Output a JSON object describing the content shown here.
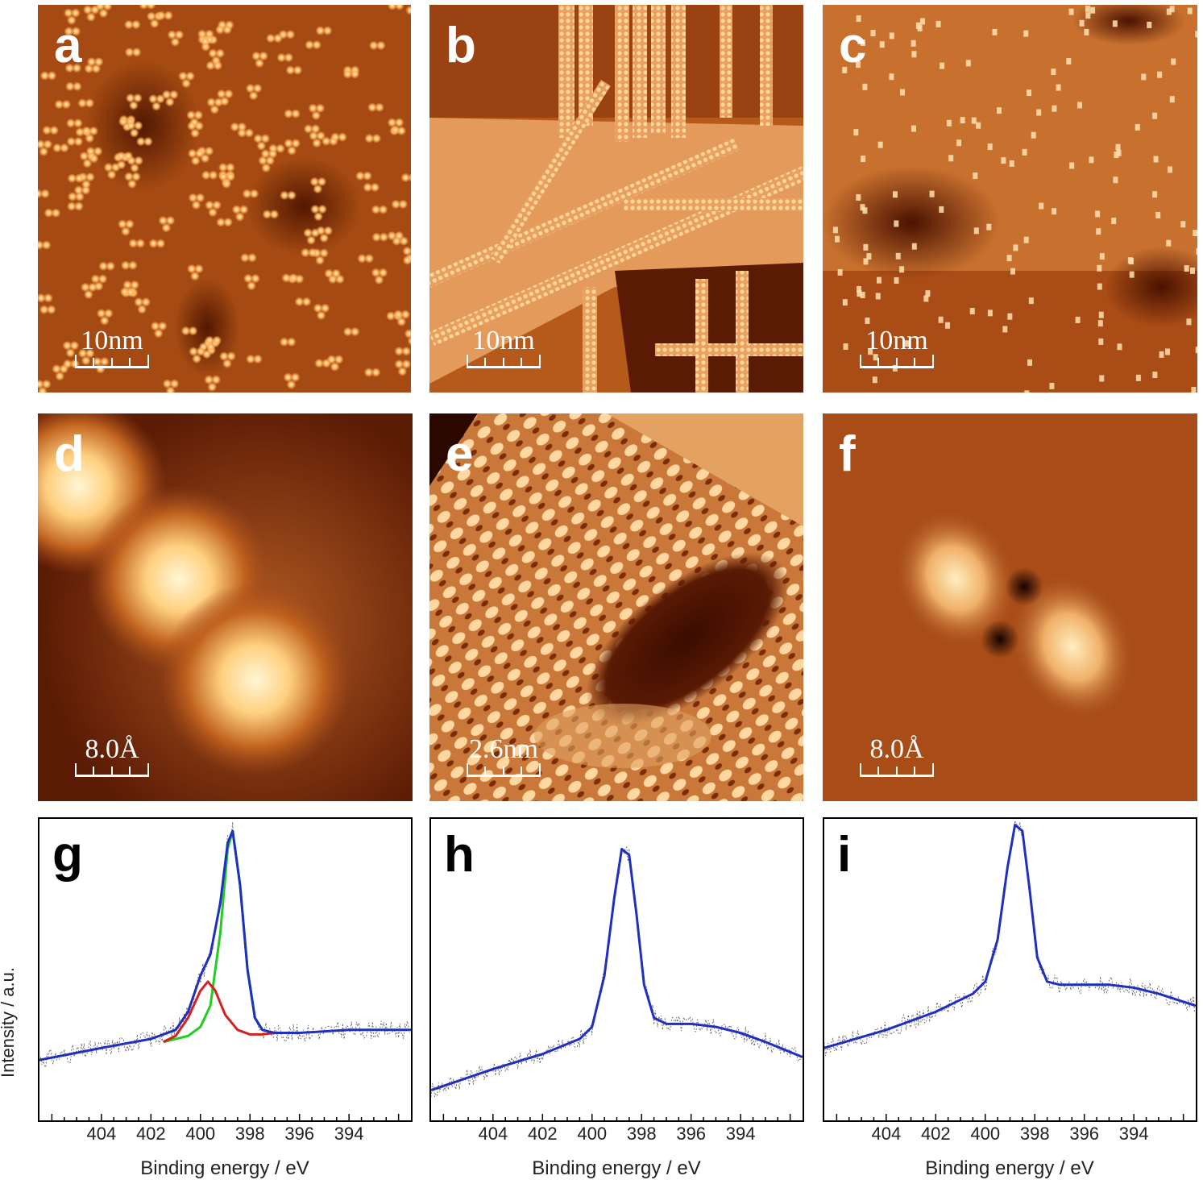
{
  "panels": {
    "a": {
      "label": "a",
      "scale": "10nm"
    },
    "b": {
      "label": "b",
      "scale": "10nm"
    },
    "c": {
      "label": "c",
      "scale": "10nm"
    },
    "d": {
      "label": "d",
      "scale": "8.0Å"
    },
    "e": {
      "label": "e",
      "scale": "2.6nm"
    },
    "f": {
      "label": "f",
      "scale": "8.0Å"
    },
    "g": {
      "label": "g"
    },
    "h": {
      "label": "h"
    },
    "i": {
      "label": "i"
    }
  },
  "colors": {
    "stm_dark": "#5a1a00",
    "stm_mid": "#b85a1e",
    "stm_bright": "#ffe4a8",
    "fit_envelope": "#1f2fbf",
    "component_1": "#d42020",
    "component_2": "#22cc22",
    "raw_data": "#555555"
  },
  "chart_data": [
    {
      "type": "line",
      "panel": "g",
      "xlabel": "Binding energy / eV",
      "ylabel": "Intensity / a.u.",
      "x_ticks": [
        "404",
        "402",
        "400",
        "398",
        "396",
        "394"
      ],
      "xlim": [
        406.5,
        391.5
      ],
      "x_reversed": true,
      "series": [
        {
          "color": "#1f2fbf",
          "x": [
            406.5,
            404,
            402,
            401,
            400.5,
            400,
            399.6,
            399.2,
            398.9,
            398.7,
            398.4,
            398.1,
            397.8,
            397.5,
            397,
            396,
            394,
            392,
            391.5
          ],
          "y": [
            0.2,
            0.24,
            0.27,
            0.3,
            0.36,
            0.48,
            0.55,
            0.72,
            0.92,
            0.96,
            0.78,
            0.5,
            0.34,
            0.3,
            0.29,
            0.29,
            0.3,
            0.3,
            0.3
          ]
        },
        {
          "color": "#d42020",
          "x": [
            401.5,
            401,
            400.5,
            400,
            399.7,
            399.4,
            399,
            398.5,
            398,
            397.5,
            397
          ],
          "y": [
            0.26,
            0.28,
            0.34,
            0.43,
            0.46,
            0.43,
            0.35,
            0.3,
            0.285,
            0.285,
            0.29
          ]
        },
        {
          "color": "#22cc22",
          "x": [
            401.5,
            401,
            400.5,
            400,
            399.6,
            399.2,
            398.9,
            398.7,
            398.4,
            398.1,
            397.8,
            397.5
          ],
          "y": [
            0.26,
            0.27,
            0.28,
            0.31,
            0.38,
            0.62,
            0.9,
            0.96,
            0.78,
            0.5,
            0.34,
            0.3
          ]
        }
      ]
    },
    {
      "type": "line",
      "panel": "h",
      "xlabel": "Binding energy / eV",
      "x_ticks": [
        "404",
        "402",
        "400",
        "398",
        "396",
        "394"
      ],
      "xlim": [
        406.5,
        391.5
      ],
      "x_reversed": true,
      "series": [
        {
          "color": "#1f2fbf",
          "x": [
            406.5,
            404,
            402,
            400.5,
            400,
            399.5,
            399.1,
            398.8,
            398.5,
            398.2,
            397.9,
            397.5,
            397,
            396,
            395,
            394,
            393,
            391.5
          ],
          "y": [
            0.1,
            0.17,
            0.22,
            0.27,
            0.31,
            0.48,
            0.74,
            0.9,
            0.88,
            0.68,
            0.45,
            0.34,
            0.32,
            0.32,
            0.31,
            0.29,
            0.26,
            0.21
          ]
        }
      ]
    },
    {
      "type": "line",
      "panel": "i",
      "xlabel": "Binding energy / eV",
      "x_ticks": [
        "404",
        "402",
        "400",
        "398",
        "396",
        "394"
      ],
      "xlim": [
        406.5,
        391.5
      ],
      "x_reversed": true,
      "series": [
        {
          "color": "#1f2fbf",
          "x": [
            406.5,
            404,
            402,
            400.5,
            400,
            399.5,
            399.1,
            398.8,
            398.5,
            398.2,
            397.9,
            397.5,
            397,
            396,
            395,
            394,
            393,
            391.5
          ],
          "y": [
            0.24,
            0.3,
            0.36,
            0.42,
            0.46,
            0.6,
            0.84,
            0.98,
            0.96,
            0.76,
            0.54,
            0.46,
            0.45,
            0.45,
            0.45,
            0.44,
            0.42,
            0.38
          ]
        }
      ]
    }
  ]
}
